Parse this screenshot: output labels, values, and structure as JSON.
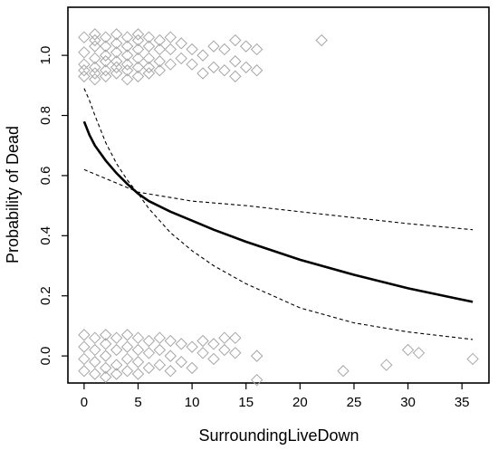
{
  "chart_data": {
    "type": "scatter",
    "title": "",
    "xlabel": "SurroundingLiveDown",
    "ylabel": "Probability of Dead",
    "xlim": [
      -1.5,
      37.5
    ],
    "ylim": [
      -0.09,
      1.16
    ],
    "xticks": [
      0,
      5,
      10,
      15,
      20,
      25,
      30,
      35
    ],
    "xtick_labels": [
      "0",
      "5",
      "10",
      "15",
      "20",
      "25",
      "30",
      "35"
    ],
    "yticks": [
      0.0,
      0.2,
      0.4,
      0.6,
      0.8,
      1.0
    ],
    "ytick_labels": [
      "0.0",
      "0.2",
      "0.4",
      "0.6",
      "0.8",
      "1.0"
    ],
    "grid": false,
    "point_style": "open-diamond",
    "point_color": "#a6a6a6",
    "line_color": "#000000",
    "series": [
      {
        "kind": "points",
        "points": [
          [
            0,
            1.06
          ],
          [
            0,
            1.01
          ],
          [
            0,
            0.97
          ],
          [
            0,
            0.95
          ],
          [
            0,
            0.93
          ],
          [
            1,
            1.07
          ],
          [
            1,
            1.05
          ],
          [
            1,
            1.03
          ],
          [
            1,
            0.99
          ],
          [
            1,
            0.96
          ],
          [
            1,
            0.94
          ],
          [
            1,
            0.92
          ],
          [
            2,
            1.06
          ],
          [
            2,
            1.03
          ],
          [
            2,
            1.0
          ],
          [
            2,
            0.98
          ],
          [
            2,
            0.95
          ],
          [
            2,
            0.93
          ],
          [
            3,
            1.07
          ],
          [
            3,
            1.04
          ],
          [
            3,
            1.01
          ],
          [
            3,
            0.98
          ],
          [
            3,
            0.96
          ],
          [
            3,
            0.94
          ],
          [
            4,
            1.06
          ],
          [
            4,
            1.03
          ],
          [
            4,
            1.0
          ],
          [
            4,
            0.97
          ],
          [
            4,
            0.95
          ],
          [
            4,
            0.92
          ],
          [
            5,
            1.07
          ],
          [
            5,
            1.05
          ],
          [
            5,
            1.02
          ],
          [
            5,
            0.99
          ],
          [
            5,
            0.96
          ],
          [
            5,
            0.93
          ],
          [
            6,
            1.06
          ],
          [
            6,
            1.03
          ],
          [
            6,
            0.99
          ],
          [
            6,
            0.96
          ],
          [
            6,
            0.94
          ],
          [
            7,
            1.05
          ],
          [
            7,
            1.02
          ],
          [
            7,
            0.98
          ],
          [
            7,
            0.95
          ],
          [
            8,
            1.06
          ],
          [
            8,
            1.02
          ],
          [
            8,
            0.97
          ],
          [
            9,
            1.04
          ],
          [
            9,
            0.99
          ],
          [
            10,
            1.02
          ],
          [
            10,
            0.97
          ],
          [
            11,
            1.0
          ],
          [
            11,
            0.94
          ],
          [
            12,
            1.03
          ],
          [
            12,
            0.96
          ],
          [
            13,
            1.02
          ],
          [
            13,
            0.95
          ],
          [
            14,
            1.05
          ],
          [
            14,
            0.98
          ],
          [
            14,
            0.93
          ],
          [
            15,
            1.03
          ],
          [
            15,
            0.96
          ],
          [
            16,
            1.02
          ],
          [
            16,
            0.95
          ],
          [
            22,
            1.05
          ],
          [
            0,
            0.07
          ],
          [
            0,
            0.03
          ],
          [
            0,
            -0.01
          ],
          [
            0,
            -0.05
          ],
          [
            1,
            0.06
          ],
          [
            1,
            0.02
          ],
          [
            1,
            -0.02
          ],
          [
            1,
            -0.06
          ],
          [
            2,
            0.07
          ],
          [
            2,
            0.04
          ],
          [
            2,
            0.0
          ],
          [
            2,
            -0.04
          ],
          [
            2,
            -0.07
          ],
          [
            3,
            0.06
          ],
          [
            3,
            0.02
          ],
          [
            3,
            -0.03
          ],
          [
            3,
            -0.06
          ],
          [
            4,
            0.07
          ],
          [
            4,
            0.03
          ],
          [
            4,
            -0.01
          ],
          [
            4,
            -0.05
          ],
          [
            5,
            0.06
          ],
          [
            5,
            0.02
          ],
          [
            5,
            -0.02
          ],
          [
            5,
            -0.06
          ],
          [
            6,
            0.05
          ],
          [
            6,
            0.01
          ],
          [
            6,
            -0.04
          ],
          [
            7,
            0.06
          ],
          [
            7,
            0.02
          ],
          [
            7,
            -0.03
          ],
          [
            8,
            0.05
          ],
          [
            8,
            0.0
          ],
          [
            8,
            -0.05
          ],
          [
            9,
            0.04
          ],
          [
            9,
            -0.02
          ],
          [
            10,
            0.03
          ],
          [
            10,
            -0.04
          ],
          [
            11,
            0.05
          ],
          [
            11,
            0.01
          ],
          [
            12,
            0.04
          ],
          [
            12,
            -0.01
          ],
          [
            13,
            0.06
          ],
          [
            13,
            0.02
          ],
          [
            14,
            0.06
          ],
          [
            14,
            0.01
          ],
          [
            16,
            0.0
          ],
          [
            16,
            -0.08
          ],
          [
            24,
            -0.05
          ],
          [
            28,
            -0.03
          ],
          [
            30,
            0.02
          ],
          [
            31,
            0.01
          ],
          [
            36,
            -0.01
          ]
        ]
      },
      {
        "kind": "fit",
        "x": [
          0,
          0.5,
          1,
          2,
          3,
          4,
          5,
          6,
          8,
          10,
          12,
          15,
          20,
          25,
          30,
          36
        ],
        "y": [
          0.78,
          0.735,
          0.7,
          0.65,
          0.608,
          0.572,
          0.54,
          0.515,
          0.48,
          0.45,
          0.42,
          0.38,
          0.32,
          0.27,
          0.225,
          0.18
        ]
      },
      {
        "kind": "upper-band",
        "x": [
          0,
          2,
          5,
          10,
          15,
          20,
          25,
          30,
          36
        ],
        "y": [
          0.62,
          0.59,
          0.545,
          0.515,
          0.5,
          0.48,
          0.46,
          0.44,
          0.42
        ]
      },
      {
        "kind": "lower-band",
        "x": [
          0,
          0.5,
          1,
          2,
          3,
          4,
          5,
          6,
          8,
          10,
          12,
          15,
          20,
          25,
          30,
          36
        ],
        "y": [
          0.89,
          0.85,
          0.8,
          0.71,
          0.64,
          0.585,
          0.54,
          0.49,
          0.41,
          0.35,
          0.3,
          0.24,
          0.16,
          0.11,
          0.08,
          0.055
        ]
      }
    ]
  }
}
